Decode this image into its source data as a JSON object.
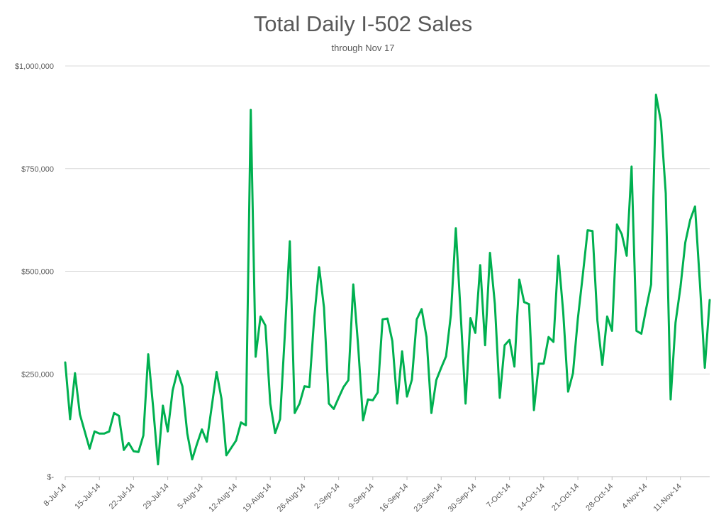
{
  "chart_data": {
    "type": "line",
    "title": "Total Daily I-502 Sales",
    "subtitle": "through Nov 17",
    "xlabel": "",
    "ylabel": "",
    "ylim": [
      0,
      1000000
    ],
    "y_ticks": [
      {
        "value": 0,
        "label": "$-"
      },
      {
        "value": 250000,
        "label": "$250,000"
      },
      {
        "value": 500000,
        "label": "$500,000"
      },
      {
        "value": 750000,
        "label": "$750,000"
      },
      {
        "value": 1000000,
        "label": "$1,000,000"
      }
    ],
    "x_tick_labels": [
      "8-Jul-14",
      "15-Jul-14",
      "22-Jul-14",
      "29-Jul-14",
      "5-Aug-14",
      "12-Aug-14",
      "19-Aug-14",
      "26-Aug-14",
      "2-Sep-14",
      "9-Sep-14",
      "16-Sep-14",
      "23-Sep-14",
      "30-Sep-14",
      "7-Oct-14",
      "14-Oct-14",
      "21-Oct-14",
      "28-Oct-14",
      "4-Nov-14",
      "11-Nov-14"
    ],
    "x_start": "8-Jul-14",
    "x_end": "17-Nov-14",
    "grid": "horizontal",
    "legend": "none",
    "series_color": "#00B050",
    "series": [
      {
        "values": [
          278000,
          140000,
          252000,
          152000,
          110000,
          68000,
          110000,
          105000,
          105000,
          110000,
          155000,
          148000,
          65000,
          82000,
          62000,
          60000,
          100000,
          298000,
          170000,
          30000,
          173000,
          110000,
          210000,
          257000,
          220000,
          105000,
          42000,
          80000,
          115000,
          85000,
          170000,
          255000,
          190000,
          52000,
          70000,
          88000,
          132000,
          125000,
          893000,
          292000,
          390000,
          368000,
          178000,
          106000,
          140000,
          350000,
          573000,
          155000,
          178000,
          220000,
          218000,
          387000,
          510000,
          412000,
          178000,
          165000,
          192000,
          218000,
          235000,
          468000,
          318000,
          137000,
          188000,
          186000,
          205000,
          383000,
          385000,
          330000,
          178000,
          305000,
          195000,
          236000,
          383000,
          408000,
          340000,
          155000,
          235000,
          265000,
          293000,
          395000,
          605000,
          395000,
          178000,
          386000,
          350000,
          515000,
          320000,
          545000,
          420000,
          192000,
          320000,
          333000,
          268000,
          480000,
          425000,
          420000,
          162000,
          275000,
          275000,
          340000,
          328000,
          538000,
          400000,
          207000,
          252000,
          385000,
          490000,
          600000,
          598000,
          380000,
          272000,
          390000,
          355000,
          614000,
          590000,
          538000,
          755000,
          355000,
          348000,
          410000,
          468000,
          930000,
          865000,
          690000,
          188000,
          375000,
          460000,
          570000,
          625000,
          658000,
          470000,
          265000,
          430000
        ]
      }
    ]
  }
}
